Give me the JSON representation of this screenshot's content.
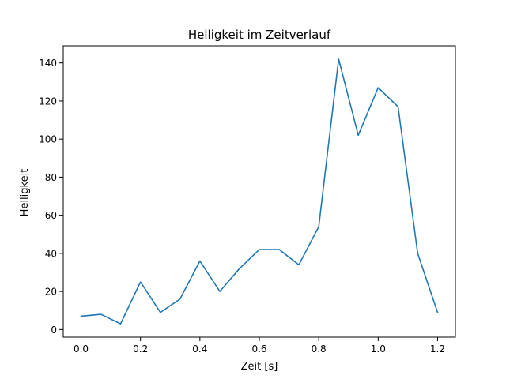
{
  "chart_data": {
    "type": "line",
    "title": "Helligkeit im Zeitverlauf",
    "xlabel": "Zeit [s]",
    "ylabel": "Helligkeit",
    "xlim": [
      -0.06,
      1.26
    ],
    "ylim": [
      -4,
      149
    ],
    "xticks": [
      0.0,
      0.2,
      0.4,
      0.6,
      0.8,
      1.0,
      1.2
    ],
    "xtick_labels": [
      "0.0",
      "0.2",
      "0.4",
      "0.6",
      "0.8",
      "1.0",
      "1.2"
    ],
    "yticks": [
      0,
      20,
      40,
      60,
      80,
      100,
      120,
      140
    ],
    "ytick_labels": [
      "0",
      "20",
      "40",
      "60",
      "80",
      "100",
      "120",
      "140"
    ],
    "grid": false,
    "series": [
      {
        "color": "#1f77b4",
        "x": [
          0.0,
          0.067,
          0.133,
          0.2,
          0.267,
          0.333,
          0.4,
          0.467,
          0.533,
          0.6,
          0.667,
          0.733,
          0.8,
          0.867,
          0.933,
          1.0,
          1.067,
          1.133,
          1.2
        ],
        "y": [
          7,
          8,
          3,
          25,
          9,
          16,
          36,
          20,
          32,
          42,
          42,
          34,
          54,
          142,
          102,
          127,
          117,
          40,
          9
        ]
      }
    ]
  }
}
